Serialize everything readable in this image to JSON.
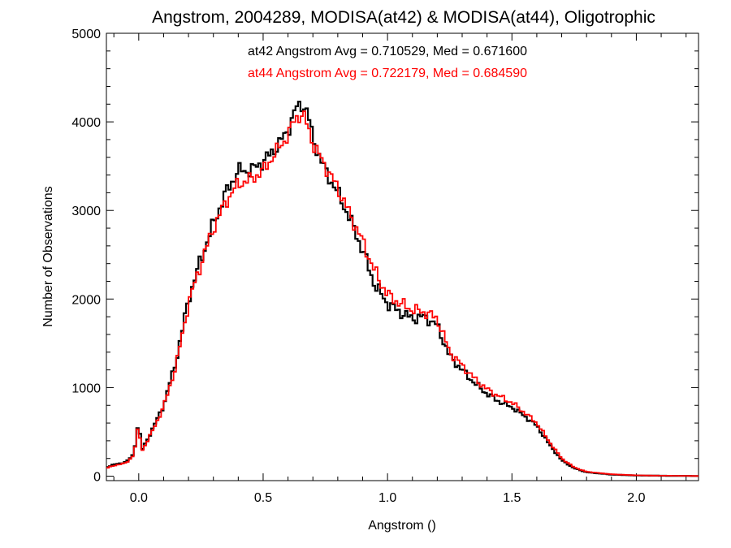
{
  "chart_data": {
    "type": "line",
    "step": true,
    "title": "Angstrom, 2004289, MODISA(at42) & MODISA(at44), Oligotrophic",
    "xlabel": "Angstrom ()",
    "ylabel": "Number of Observations",
    "xlim": [
      -0.13,
      2.25
    ],
    "ylim": [
      -50,
      5000
    ],
    "xticks": [
      0.0,
      0.5,
      1.0,
      1.5,
      2.0
    ],
    "xtick_labels": [
      "0.0",
      "0.5",
      "1.0",
      "1.5",
      "2.0"
    ],
    "yticks": [
      0,
      1000,
      2000,
      3000,
      4000,
      5000
    ],
    "ytick_labels": [
      "0",
      "1000",
      "2000",
      "3000",
      "4000",
      "5000"
    ],
    "annotations": [
      {
        "text": "at42 Angstrom Avg = 0.710529, Med = 0.671600",
        "color": "#000000"
      },
      {
        "text": "at44 Angstrom Avg = 0.722179, Med = 0.684590",
        "color": "#ff0000"
      }
    ],
    "series": [
      {
        "color": "#000000",
        "x": [
          -0.13,
          -0.1,
          -0.05,
          -0.02,
          0.0,
          0.01,
          0.05,
          0.1,
          0.15,
          0.2,
          0.25,
          0.3,
          0.35,
          0.4,
          0.45,
          0.5,
          0.55,
          0.6,
          0.63,
          0.66,
          0.68,
          0.7,
          0.75,
          0.8,
          0.85,
          0.9,
          0.95,
          1.0,
          1.05,
          1.1,
          1.15,
          1.2,
          1.25,
          1.3,
          1.35,
          1.4,
          1.45,
          1.5,
          1.55,
          1.6,
          1.65,
          1.7,
          1.75,
          1.8,
          1.9,
          2.0,
          2.1,
          2.2,
          2.25
        ],
        "y": [
          100,
          130,
          160,
          250,
          650,
          280,
          500,
          800,
          1300,
          2000,
          2450,
          2850,
          3200,
          3450,
          3450,
          3550,
          3700,
          3900,
          4150,
          4200,
          4100,
          3800,
          3450,
          3200,
          2900,
          2550,
          2150,
          1950,
          1850,
          1780,
          1800,
          1700,
          1350,
          1200,
          1050,
          930,
          840,
          780,
          680,
          570,
          360,
          180,
          90,
          45,
          18,
          8,
          5,
          3,
          2
        ]
      },
      {
        "color": "#ff0000",
        "x": [
          -0.13,
          -0.1,
          -0.05,
          -0.02,
          0.0,
          0.01,
          0.05,
          0.1,
          0.15,
          0.2,
          0.25,
          0.3,
          0.35,
          0.4,
          0.45,
          0.5,
          0.55,
          0.6,
          0.63,
          0.66,
          0.68,
          0.7,
          0.75,
          0.8,
          0.85,
          0.9,
          0.95,
          1.0,
          1.05,
          1.1,
          1.15,
          1.2,
          1.25,
          1.3,
          1.35,
          1.4,
          1.45,
          1.5,
          1.55,
          1.6,
          1.65,
          1.7,
          1.75,
          1.8,
          1.9,
          2.0,
          2.1,
          2.2,
          2.25
        ],
        "y": [
          90,
          120,
          150,
          240,
          600,
          270,
          480,
          780,
          1250,
          1950,
          2400,
          2800,
          3100,
          3300,
          3350,
          3450,
          3650,
          3850,
          4050,
          4080,
          3950,
          3750,
          3500,
          3250,
          2950,
          2650,
          2300,
          2050,
          1950,
          1880,
          1850,
          1780,
          1400,
          1250,
          1100,
          980,
          900,
          830,
          720,
          600,
          390,
          200,
          100,
          50,
          22,
          10,
          6,
          4,
          2
        ]
      }
    ]
  }
}
